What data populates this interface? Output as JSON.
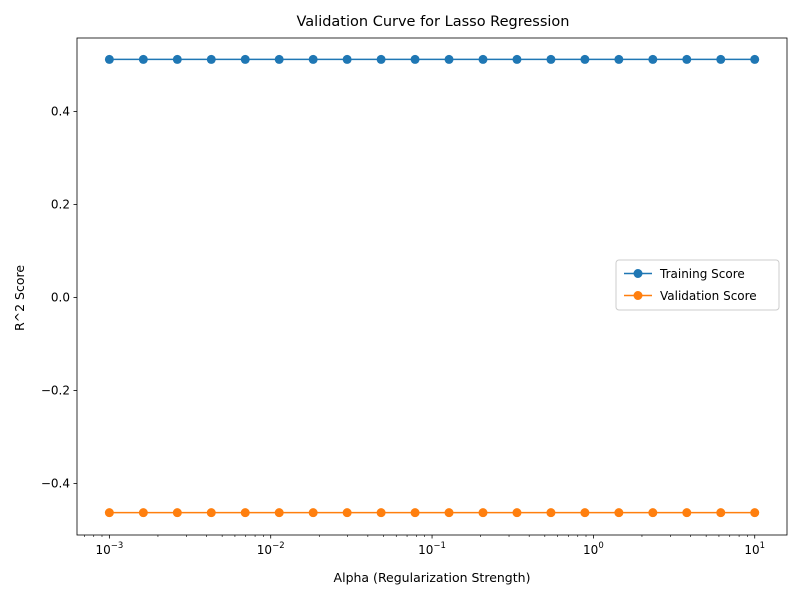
{
  "chart_data": {
    "type": "line",
    "title": "Validation Curve for Lasso Regression",
    "xlabel": "Alpha (Regularization Strength)",
    "ylabel": "R^2 Score",
    "xscale": "log",
    "xlim": [
      0.00063,
      15.85
    ],
    "ylim": [
      -0.511,
      0.558
    ],
    "x_ticks": [
      {
        "value": 0.001,
        "base": "10",
        "exp": "−3"
      },
      {
        "value": 0.01,
        "base": "10",
        "exp": "−2"
      },
      {
        "value": 0.1,
        "base": "10",
        "exp": "−1"
      },
      {
        "value": 1,
        "base": "10",
        "exp": "0"
      },
      {
        "value": 10,
        "base": "10",
        "exp": "1"
      }
    ],
    "y_ticks": [
      {
        "value": -0.4,
        "label": "−0.4"
      },
      {
        "value": -0.2,
        "label": "−0.2"
      },
      {
        "value": 0.0,
        "label": "0.0"
      },
      {
        "value": 0.2,
        "label": "0.2"
      },
      {
        "value": 0.4,
        "label": "0.4"
      }
    ],
    "x": [
      0.001,
      0.001624,
      0.002637,
      0.004281,
      0.006952,
      0.011288,
      0.01833,
      0.029764,
      0.048329,
      0.078476,
      0.127427,
      0.206914,
      0.335982,
      0.545559,
      0.885867,
      1.43845,
      2.335721,
      3.79269,
      6.158482,
      10.0
    ],
    "series": [
      {
        "name": "Training Score",
        "color": "#1f77b4",
        "values": [
          0.512,
          0.512,
          0.512,
          0.512,
          0.512,
          0.512,
          0.512,
          0.512,
          0.512,
          0.512,
          0.512,
          0.512,
          0.512,
          0.512,
          0.512,
          0.512,
          0.512,
          0.512,
          0.512,
          0.512
        ]
      },
      {
        "name": "Validation Score",
        "color": "#ff7f0e",
        "values": [
          -0.463,
          -0.463,
          -0.463,
          -0.463,
          -0.463,
          -0.463,
          -0.463,
          -0.463,
          -0.463,
          -0.463,
          -0.463,
          -0.463,
          -0.463,
          -0.463,
          -0.463,
          -0.463,
          -0.463,
          -0.463,
          -0.463,
          -0.463
        ]
      }
    ],
    "grid": false,
    "legend_position": "center-right"
  }
}
